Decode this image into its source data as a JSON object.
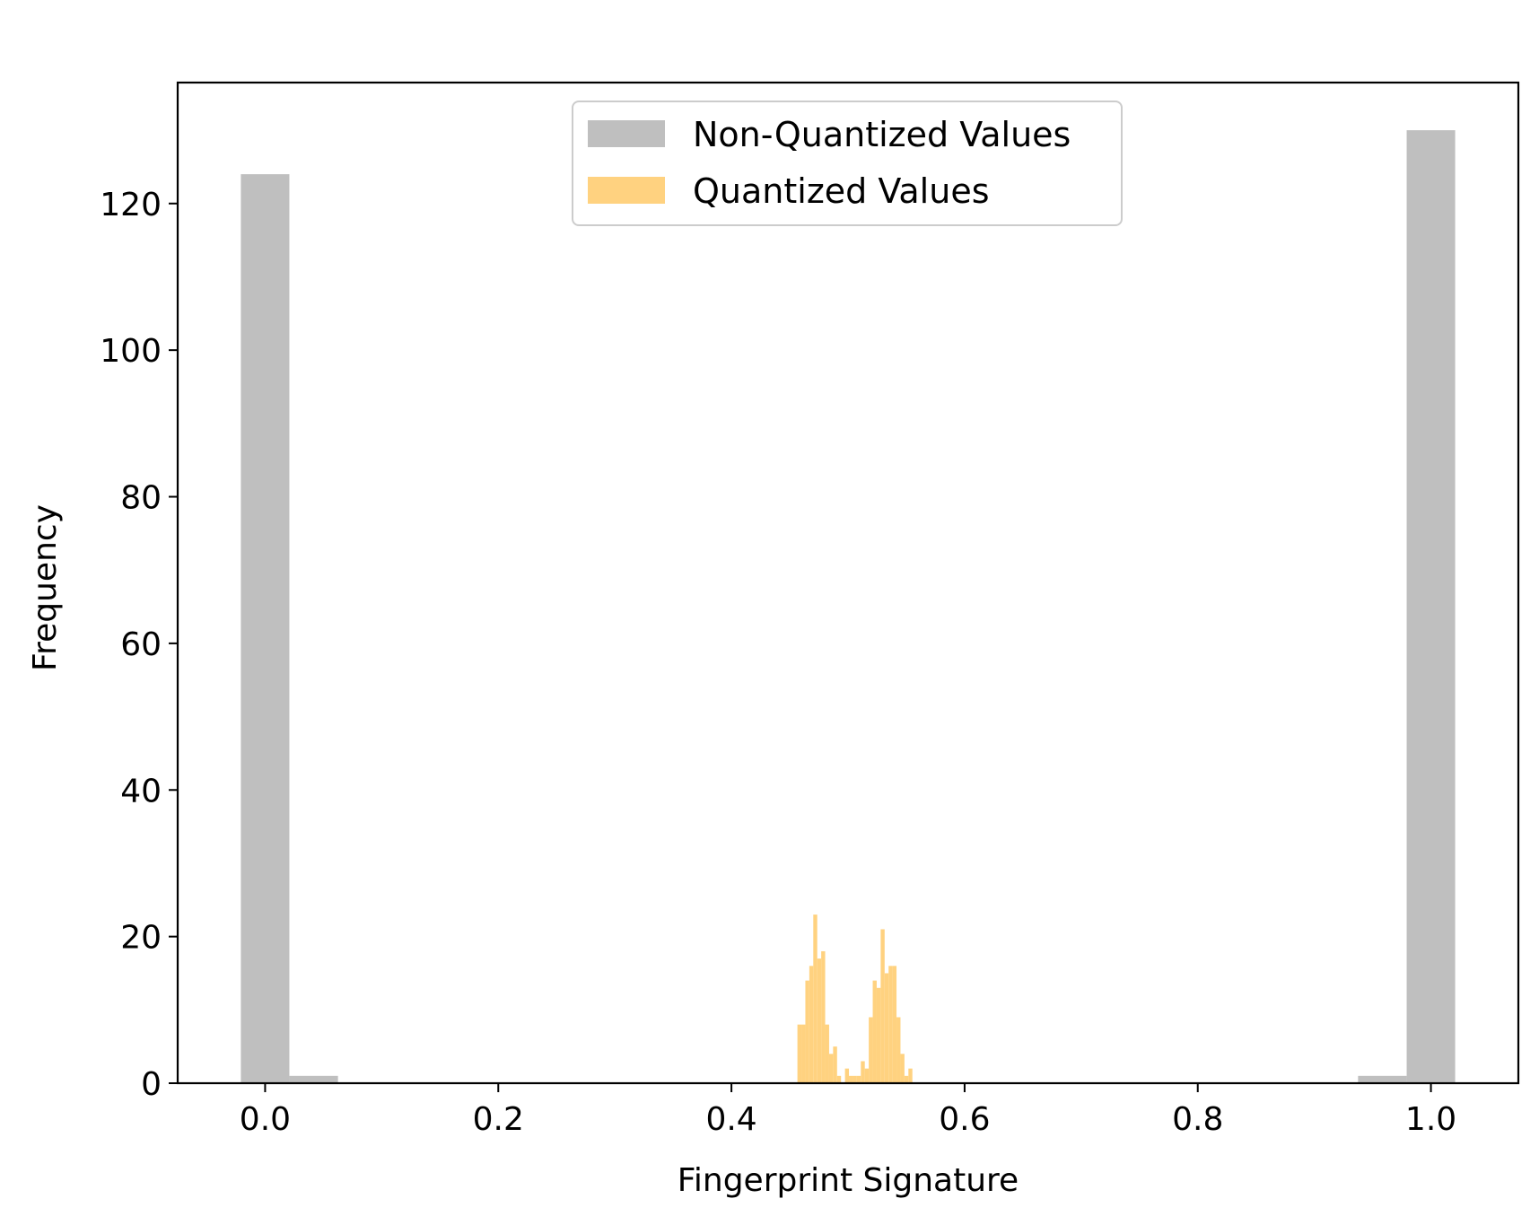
{
  "chart_data": {
    "type": "bar",
    "subtype": "histogram",
    "title": "",
    "xlabel": "Fingerprint Signature",
    "ylabel": "Frequency",
    "xlim": [
      -0.075,
      1.075
    ],
    "ylim": [
      0,
      136.5
    ],
    "xticks": [
      0.0,
      0.2,
      0.4,
      0.6,
      0.8,
      1.0
    ],
    "xtick_labels": [
      "0.0",
      "0.2",
      "0.4",
      "0.6",
      "0.8",
      "1.0"
    ],
    "yticks": [
      0,
      20,
      40,
      60,
      80,
      100,
      120
    ],
    "ytick_labels": [
      "0",
      "20",
      "40",
      "60",
      "80",
      "100",
      "120"
    ],
    "grid": false,
    "legend": {
      "position": "upper center",
      "entries": [
        "Non-Quantized Values",
        "Quantized Values"
      ]
    },
    "series": [
      {
        "name": "Non-Quantized Values",
        "color": "#bfbfbf",
        "bins": [
          {
            "x0": -0.0208,
            "x1": 0.0208,
            "count": 124
          },
          {
            "x0": 0.0208,
            "x1": 0.0625,
            "count": 1
          },
          {
            "x0": 0.9375,
            "x1": 0.9792,
            "count": 1
          },
          {
            "x0": 0.9792,
            "x1": 1.0208,
            "count": 130
          }
        ]
      },
      {
        "name": "Quantized Values",
        "color": "#ffd280",
        "bins": [
          {
            "x0": 0.4566,
            "x1": 0.46,
            "count": 8
          },
          {
            "x0": 0.46,
            "x1": 0.4634,
            "count": 8
          },
          {
            "x0": 0.4634,
            "x1": 0.4668,
            "count": 14
          },
          {
            "x0": 0.4668,
            "x1": 0.4702,
            "count": 16
          },
          {
            "x0": 0.4702,
            "x1": 0.4736,
            "count": 23
          },
          {
            "x0": 0.4736,
            "x1": 0.477,
            "count": 17
          },
          {
            "x0": 0.477,
            "x1": 0.4804,
            "count": 18
          },
          {
            "x0": 0.4804,
            "x1": 0.4838,
            "count": 8
          },
          {
            "x0": 0.4838,
            "x1": 0.4872,
            "count": 4
          },
          {
            "x0": 0.4872,
            "x1": 0.4906,
            "count": 5
          },
          {
            "x0": 0.4906,
            "x1": 0.494,
            "count": 1
          },
          {
            "x0": 0.494,
            "x1": 0.4974,
            "count": 0
          },
          {
            "x0": 0.4974,
            "x1": 0.5008,
            "count": 2
          },
          {
            "x0": 0.5008,
            "x1": 0.5042,
            "count": 1
          },
          {
            "x0": 0.5042,
            "x1": 0.5076,
            "count": 1
          },
          {
            "x0": 0.5076,
            "x1": 0.511,
            "count": 1
          },
          {
            "x0": 0.511,
            "x1": 0.5144,
            "count": 3
          },
          {
            "x0": 0.5144,
            "x1": 0.5178,
            "count": 2
          },
          {
            "x0": 0.5178,
            "x1": 0.5212,
            "count": 9
          },
          {
            "x0": 0.5212,
            "x1": 0.5246,
            "count": 14
          },
          {
            "x0": 0.5246,
            "x1": 0.528,
            "count": 13
          },
          {
            "x0": 0.528,
            "x1": 0.5314,
            "count": 21
          },
          {
            "x0": 0.5314,
            "x1": 0.5348,
            "count": 15
          },
          {
            "x0": 0.5348,
            "x1": 0.5382,
            "count": 16
          },
          {
            "x0": 0.5382,
            "x1": 0.5416,
            "count": 16
          },
          {
            "x0": 0.5416,
            "x1": 0.545,
            "count": 9
          },
          {
            "x0": 0.545,
            "x1": 0.5484,
            "count": 4
          },
          {
            "x0": 0.5484,
            "x1": 0.5518,
            "count": 1
          },
          {
            "x0": 0.5518,
            "x1": 0.5552,
            "count": 2
          }
        ]
      }
    ]
  }
}
